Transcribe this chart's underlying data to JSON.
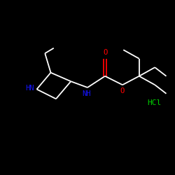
{
  "background_color": "#000000",
  "atom_colors": {
    "N": "#1414FF",
    "O": "#FF0000",
    "C": "#FFFFFF",
    "Cl": "#00CC00",
    "H": "#FFFFFF"
  },
  "bond_color": "#FFFFFF",
  "bond_lw": 1.3,
  "font_size_atom": 7.5,
  "font_size_hcl": 8.0,
  "hcl_text": "HCl",
  "hn_text": "HN",
  "nh_text": "NH",
  "o_text": "O"
}
